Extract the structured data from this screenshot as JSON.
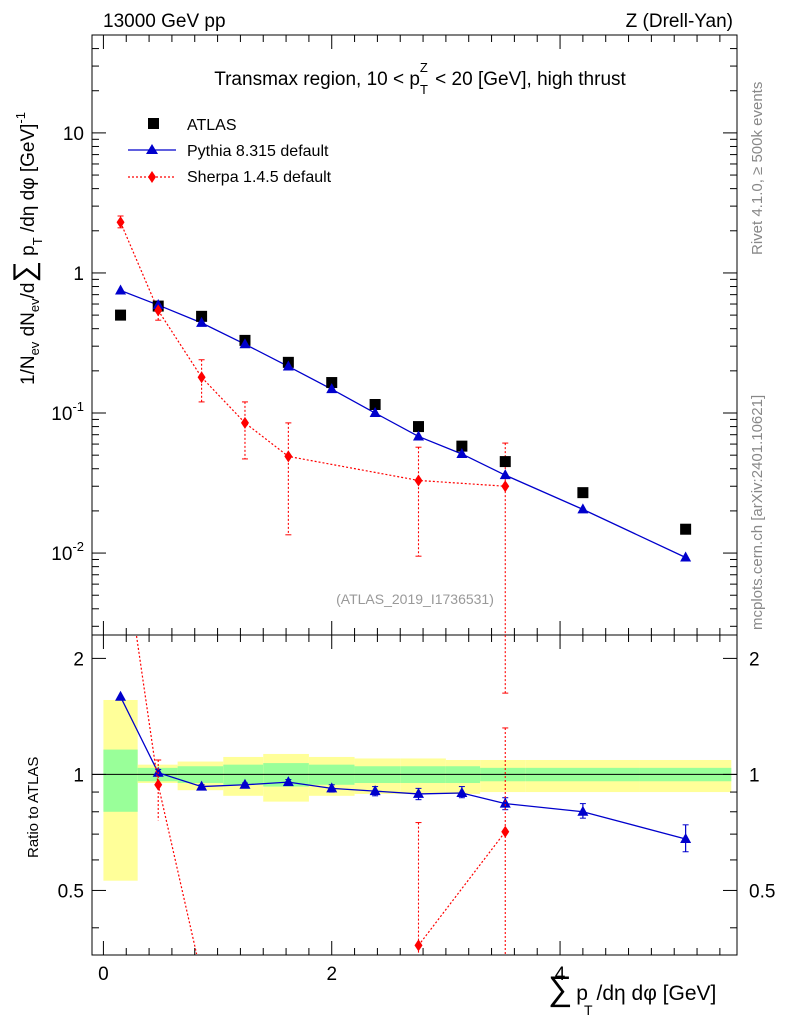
{
  "header": {
    "left": "13000 GeV pp",
    "right": "Z (Drell-Yan)"
  },
  "side_labels": {
    "rivet": "Rivet 4.1.0, ≥ 500k events",
    "mcplots": "mcplots.cern.ch [arXiv:2401.10621]"
  },
  "chart_data": [
    {
      "type": "scatter",
      "panel": "main",
      "title": "Transmax region, 10 < p_T^Z < 20 [GeV], high thrust",
      "ylabel": "1/N_ev dN_ev/d∑ p_T /dη dφ [GeV]^-1",
      "xlabel": "∑ p_T /dη dφ [GeV]",
      "yscale": "log",
      "xlim": [
        -0.1,
        5.55
      ],
      "ylim": [
        0.0026,
        50
      ],
      "ytick_labels": [
        "10^-2",
        "10^-1",
        "1",
        "10"
      ],
      "analysis_tag": "(ATLAS_2019_I1736531)",
      "series": [
        {
          "name": "ATLAS",
          "color": "#000000",
          "marker": "square",
          "x": [
            0.15,
            0.48,
            0.86,
            1.24,
            1.62,
            2.0,
            2.38,
            2.76,
            3.14,
            3.52,
            4.2,
            5.1
          ],
          "y": [
            0.5,
            0.58,
            0.49,
            0.33,
            0.23,
            0.165,
            0.115,
            0.08,
            0.058,
            0.045,
            0.027,
            0.0148
          ]
        },
        {
          "name": "Pythia 8.315 default",
          "color": "#0000cc",
          "marker": "triangle",
          "line": "solid",
          "x": [
            0.15,
            0.48,
            0.86,
            1.24,
            1.62,
            2.0,
            2.38,
            2.76,
            3.14,
            3.52,
            4.2,
            5.1
          ],
          "y": [
            0.75,
            0.59,
            0.44,
            0.31,
            0.215,
            0.148,
            0.1,
            0.068,
            0.051,
            0.036,
            0.0205,
            0.0093
          ]
        },
        {
          "name": "Sherpa 1.4.5 default",
          "color": "#ff0000",
          "marker": "diamond",
          "line": "dotted",
          "x": [
            0.15,
            0.48,
            0.86,
            1.24,
            1.62,
            2.76,
            3.52
          ],
          "y": [
            2.3,
            0.54,
            0.18,
            0.085,
            0.049,
            0.033,
            0.03
          ],
          "err_low": [
            2.1,
            0.46,
            0.12,
            0.047,
            0.0135,
            0.0095,
            0.001
          ],
          "err_high": [
            2.55,
            0.62,
            0.24,
            0.12,
            0.085,
            0.057,
            0.061
          ]
        }
      ]
    },
    {
      "type": "scatter",
      "panel": "ratio",
      "ylabel": "Ratio to ATLAS",
      "xlim": [
        -0.1,
        5.55
      ],
      "ylim": [
        0.34,
        2.3
      ],
      "xtick_labels": [
        "0",
        "2",
        "4"
      ],
      "ytick_labels": [
        "0.5",
        "1",
        "2"
      ],
      "bands": {
        "edges": [
          0.0,
          0.3,
          0.65,
          1.05,
          1.4,
          1.8,
          2.2,
          2.6,
          3.0,
          3.3,
          3.7,
          4.7,
          5.5
        ],
        "green_low": [
          0.8,
          0.96,
          0.95,
          0.94,
          0.93,
          0.94,
          0.95,
          0.95,
          0.95,
          0.96,
          0.96,
          0.96
        ],
        "green_high": [
          1.16,
          1.04,
          1.05,
          1.06,
          1.07,
          1.06,
          1.05,
          1.05,
          1.05,
          1.04,
          1.04,
          1.04
        ],
        "yellow_low": [
          0.53,
          0.95,
          0.91,
          0.88,
          0.85,
          0.88,
          0.89,
          0.89,
          0.89,
          0.9,
          0.9,
          0.9
        ],
        "yellow_high": [
          1.56,
          1.06,
          1.08,
          1.11,
          1.13,
          1.11,
          1.1,
          1.1,
          1.09,
          1.09,
          1.09,
          1.09
        ]
      },
      "series": [
        {
          "name": "Pythia 8.315 default",
          "color": "#0000cc",
          "x": [
            0.15,
            0.48,
            0.86,
            1.24,
            1.62,
            2.0,
            2.38,
            2.76,
            3.14,
            3.52,
            4.2,
            5.1
          ],
          "y": [
            1.59,
            1.01,
            0.93,
            0.94,
            0.955,
            0.92,
            0.905,
            0.89,
            0.895,
            0.84,
            0.8,
            0.68
          ],
          "err_low": [
            1.59,
            0.99,
            0.92,
            0.93,
            0.94,
            0.9,
            0.88,
            0.86,
            0.87,
            0.81,
            0.77,
            0.63
          ],
          "err_high": [
            1.59,
            1.03,
            0.94,
            0.95,
            0.97,
            0.94,
            0.93,
            0.92,
            0.93,
            0.87,
            0.84,
            0.74
          ]
        },
        {
          "name": "Sherpa 1.4.5 default",
          "color": "#ff0000",
          "x": [
            0.48,
            2.76,
            3.52
          ],
          "y": [
            0.94,
            0.36,
            0.71
          ],
          "err_low": [
            0.76,
            0.3,
            0.3
          ],
          "err_high": [
            1.09,
            0.75,
            1.32
          ]
        }
      ]
    }
  ]
}
